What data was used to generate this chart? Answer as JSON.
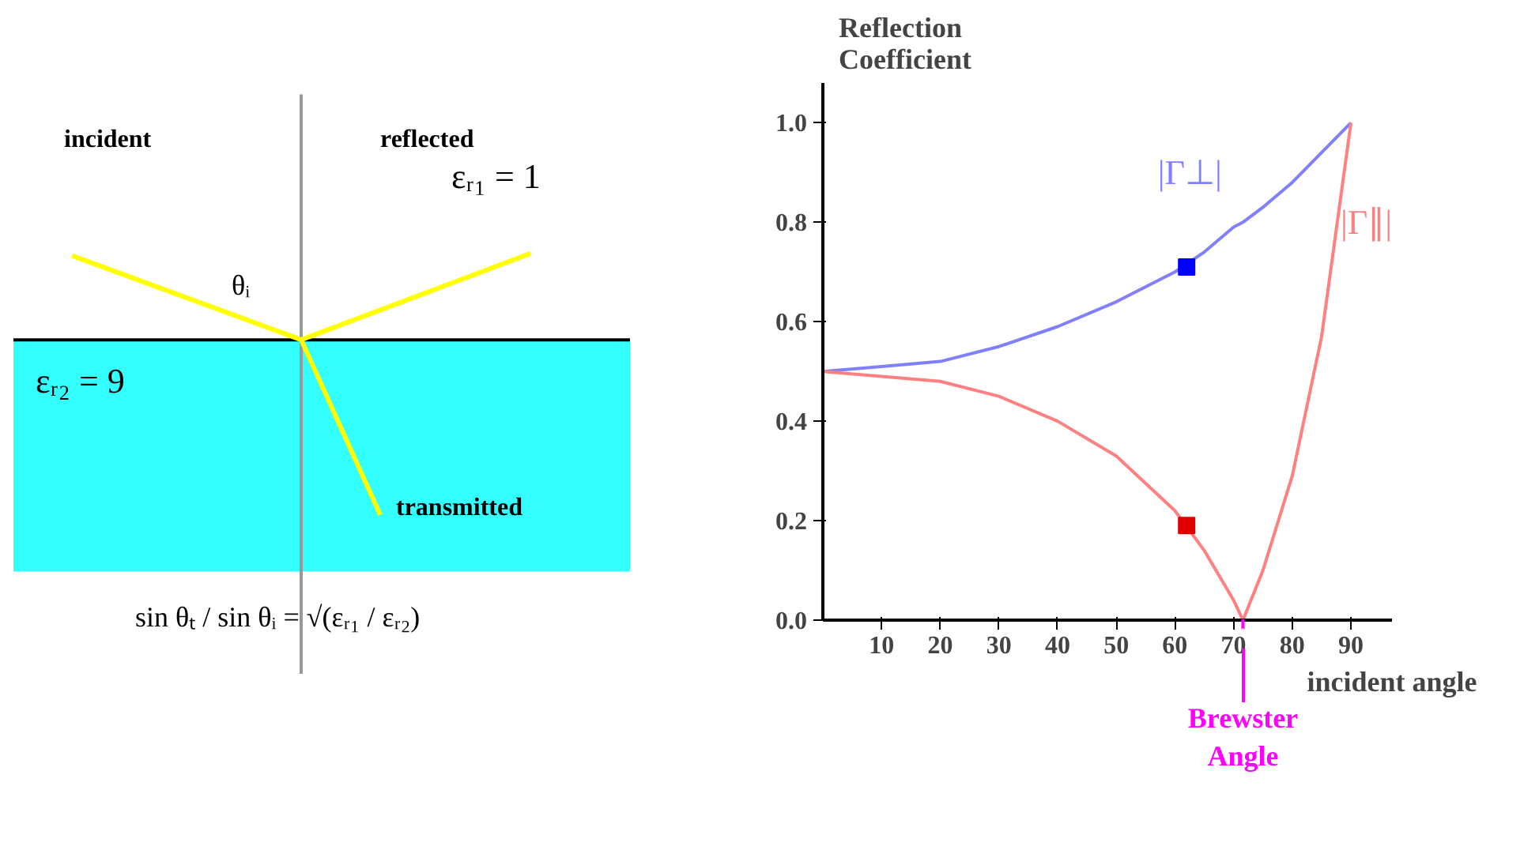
{
  "chart_data": [
    {
      "type": "other",
      "annotations": [
        "incident",
        "reflected",
        "εᵣ₁ = 1",
        "θᵢ",
        "εᵣ₂ = 9",
        "transmitted",
        "sin θₜ / sin θᵢ = √(εᵣ₁ / εᵣ₂)"
      ]
    },
    {
      "type": "line",
      "xlabel": "incident angle",
      "ylabel": "Reflection Coefficient",
      "x": [
        0,
        10,
        20,
        30,
        40,
        50,
        60,
        65,
        70,
        71.6,
        75,
        80,
        85,
        90
      ],
      "series": [
        {
          "name": "|Γ⊥|",
          "color": "#8080ff",
          "values": [
            0.5,
            0.51,
            0.52,
            0.55,
            0.59,
            0.64,
            0.7,
            0.74,
            0.79,
            0.8,
            0.83,
            0.88,
            0.94,
            1.0
          ]
        },
        {
          "name": "|Γ∥|",
          "color": "#ff8080",
          "values": [
            0.5,
            0.49,
            0.48,
            0.45,
            0.4,
            0.33,
            0.22,
            0.14,
            0.04,
            0,
            0.1,
            0.29,
            0.57,
            1.0
          ]
        },
        {
          "type": "scatter",
          "color": "#0000ff",
          "x": [
            62
          ],
          "values": [
            0.71
          ]
        },
        {
          "type": "scatter",
          "color": "#e00000",
          "x": [
            62
          ],
          "values": [
            0.19
          ]
        }
      ],
      "xlim": [
        0,
        97
      ],
      "ylim": [
        0,
        1.08
      ],
      "xticks": [
        10,
        20,
        30,
        40,
        50,
        60,
        70,
        80,
        90
      ],
      "yticks": [
        {
          "value": 0,
          "label": "0.0"
        },
        {
          "value": 0.2,
          "label": "0.2"
        },
        {
          "value": 0.4,
          "label": "0.4"
        },
        {
          "value": 0.6,
          "label": "0.6"
        },
        {
          "value": 0.8,
          "label": "0.8"
        },
        {
          "value": 1,
          "label": "1.0"
        }
      ],
      "annotations": [
        {
          "text": "Brewster Angle",
          "x": 71.6,
          "y": 0
        }
      ]
    }
  ]
}
